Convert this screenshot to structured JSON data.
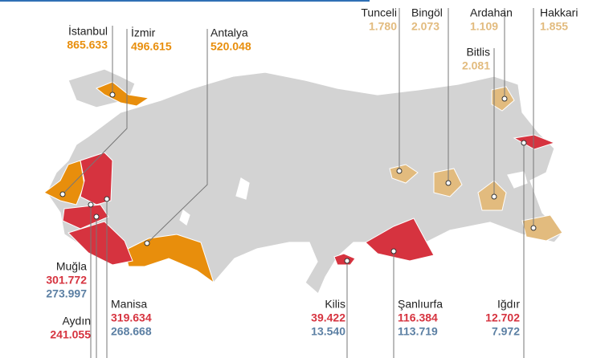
{
  "callouts": [
    {
      "name": "İstanbul",
      "values": [
        "865.633"
      ],
      "color": "#e88e0c"
    },
    {
      "name": "İzmir",
      "values": [
        "496.615"
      ],
      "color": "#e88e0c"
    },
    {
      "name": "Antalya",
      "values": [
        "520.048"
      ],
      "color": "#e88e0c"
    },
    {
      "name": "Tunceli",
      "values": [
        "1.780"
      ],
      "color": "#e2bb7e"
    },
    {
      "name": "Bingöl",
      "values": [
        "2.073"
      ],
      "color": "#e2bb7e"
    },
    {
      "name": "Ardahan",
      "values": [
        "1.109"
      ],
      "color": "#e2bb7e"
    },
    {
      "name": "Hakkari",
      "values": [
        "1.855"
      ],
      "color": "#e2bb7e"
    },
    {
      "name": "Bitlis",
      "values": [
        "2.081"
      ],
      "color": "#e2bb7e"
    },
    {
      "name": "Muğla",
      "values": [
        "301.772",
        "273.997"
      ],
      "color": "#d6333f"
    },
    {
      "name": "Aydın",
      "values": [
        "241.055"
      ],
      "color": "#d6333f"
    },
    {
      "name": "Manisa",
      "values": [
        "319.634",
        "268.668"
      ],
      "color": "#d6333f"
    },
    {
      "name": "Kilis",
      "values": [
        "39.422",
        "13.540"
      ],
      "color": "#d6333f"
    },
    {
      "name": "Şanlıurfa",
      "values": [
        "116.384",
        "113.719"
      ],
      "color": "#d6333f"
    },
    {
      "name": "Iğdır",
      "values": [
        "12.702",
        "7.972"
      ],
      "color": "#d6333f"
    }
  ],
  "second_value_color": "#5b7fa3"
}
